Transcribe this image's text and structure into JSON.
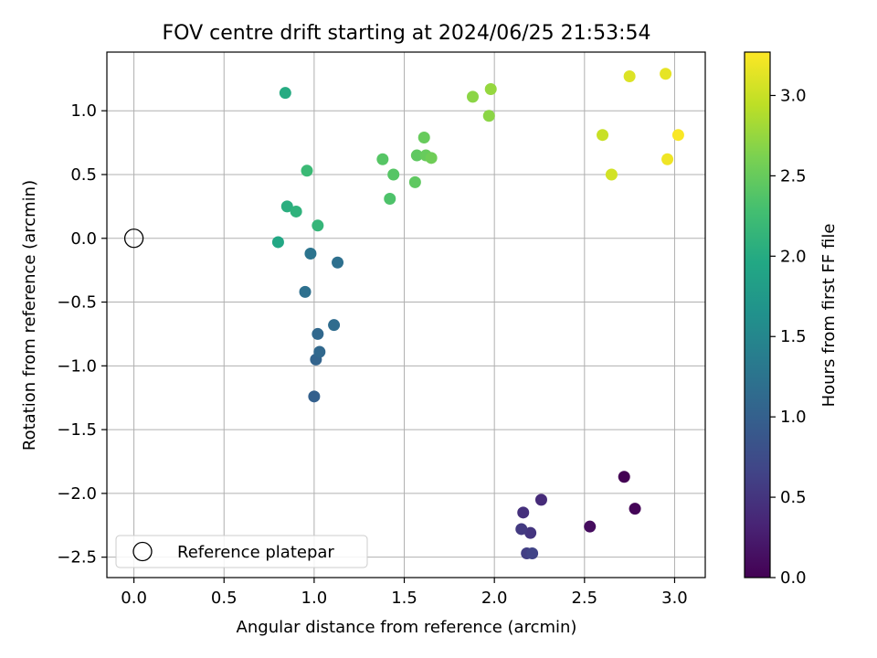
{
  "chart_data": {
    "type": "scatter",
    "title": "FOV centre drift starting at 2024/06/25 21:53:54",
    "xlabel": "Angular distance from reference (arcmin)",
    "ylabel": "Rotation from reference (arcmin)",
    "xlim": [
      -0.15,
      3.17
    ],
    "ylim": [
      -2.66,
      1.46
    ],
    "xticks": [
      0.0,
      0.5,
      1.0,
      1.5,
      2.0,
      2.5,
      3.0
    ],
    "xtick_labels": [
      "0.0",
      "0.5",
      "1.0",
      "1.5",
      "2.0",
      "2.5",
      "3.0"
    ],
    "yticks": [
      -2.5,
      -2.0,
      -1.5,
      -1.0,
      -0.5,
      0.0,
      0.5,
      1.0
    ],
    "ytick_labels": [
      "−2.5",
      "−2.0",
      "−1.5",
      "−1.0",
      "−0.5",
      "0.0",
      "0.5",
      "1.0"
    ],
    "grid": true,
    "legend": {
      "placement": "lower-left",
      "entries": [
        {
          "label": "Reference platepar"
        }
      ]
    },
    "reference_point": {
      "x": 0.0,
      "y": 0.0
    },
    "colorbar": {
      "label": "Hours from first FF file",
      "range": [
        0.0,
        3.27
      ],
      "ticks": [
        0.0,
        0.5,
        1.0,
        1.5,
        2.0,
        2.5,
        3.0
      ],
      "tick_labels": [
        "0.0",
        "0.5",
        "1.0",
        "1.5",
        "2.0",
        "2.5",
        "3.0"
      ],
      "colormap": "viridis"
    },
    "points": [
      {
        "x": 2.72,
        "y": -1.87,
        "hours": 0.0
      },
      {
        "x": 2.78,
        "y": -2.12,
        "hours": 0.03
      },
      {
        "x": 2.53,
        "y": -2.26,
        "hours": 0.1
      },
      {
        "x": 2.26,
        "y": -2.05,
        "hours": 0.4
      },
      {
        "x": 2.16,
        "y": -2.15,
        "hours": 0.45
      },
      {
        "x": 2.2,
        "y": -2.31,
        "hours": 0.5
      },
      {
        "x": 2.15,
        "y": -2.28,
        "hours": 0.55
      },
      {
        "x": 2.18,
        "y": -2.47,
        "hours": 0.6
      },
      {
        "x": 2.21,
        "y": -2.47,
        "hours": 0.65
      },
      {
        "x": 1.0,
        "y": -1.24,
        "hours": 1.0
      },
      {
        "x": 1.01,
        "y": -0.95,
        "hours": 1.05
      },
      {
        "x": 1.03,
        "y": -0.89,
        "hours": 1.1
      },
      {
        "x": 1.02,
        "y": -0.75,
        "hours": 1.1
      },
      {
        "x": 1.11,
        "y": -0.68,
        "hours": 1.15
      },
      {
        "x": 0.95,
        "y": -0.42,
        "hours": 1.2
      },
      {
        "x": 1.13,
        "y": -0.19,
        "hours": 1.2
      },
      {
        "x": 0.98,
        "y": -0.12,
        "hours": 1.25
      },
      {
        "x": 0.8,
        "y": -0.03,
        "hours": 1.95
      },
      {
        "x": 0.84,
        "y": 1.14,
        "hours": 2.0
      },
      {
        "x": 0.85,
        "y": 0.25,
        "hours": 2.05
      },
      {
        "x": 0.9,
        "y": 0.21,
        "hours": 2.1
      },
      {
        "x": 1.02,
        "y": 0.1,
        "hours": 2.15
      },
      {
        "x": 0.96,
        "y": 0.53,
        "hours": 2.2
      },
      {
        "x": 1.42,
        "y": 0.31,
        "hours": 2.35
      },
      {
        "x": 1.38,
        "y": 0.62,
        "hours": 2.4
      },
      {
        "x": 1.44,
        "y": 0.5,
        "hours": 2.4
      },
      {
        "x": 1.56,
        "y": 0.44,
        "hours": 2.45
      },
      {
        "x": 1.57,
        "y": 0.65,
        "hours": 2.45
      },
      {
        "x": 1.61,
        "y": 0.79,
        "hours": 2.5
      },
      {
        "x": 1.62,
        "y": 0.65,
        "hours": 2.5
      },
      {
        "x": 1.65,
        "y": 0.63,
        "hours": 2.55
      },
      {
        "x": 1.88,
        "y": 1.11,
        "hours": 2.7
      },
      {
        "x": 1.97,
        "y": 0.96,
        "hours": 2.7
      },
      {
        "x": 1.98,
        "y": 1.17,
        "hours": 2.75
      },
      {
        "x": 2.6,
        "y": 0.81,
        "hours": 3.0
      },
      {
        "x": 2.65,
        "y": 0.5,
        "hours": 3.05
      },
      {
        "x": 2.75,
        "y": 1.27,
        "hours": 3.1
      },
      {
        "x": 2.95,
        "y": 1.29,
        "hours": 3.15
      },
      {
        "x": 2.96,
        "y": 0.62,
        "hours": 3.2
      },
      {
        "x": 3.02,
        "y": 0.81,
        "hours": 3.25
      }
    ]
  }
}
